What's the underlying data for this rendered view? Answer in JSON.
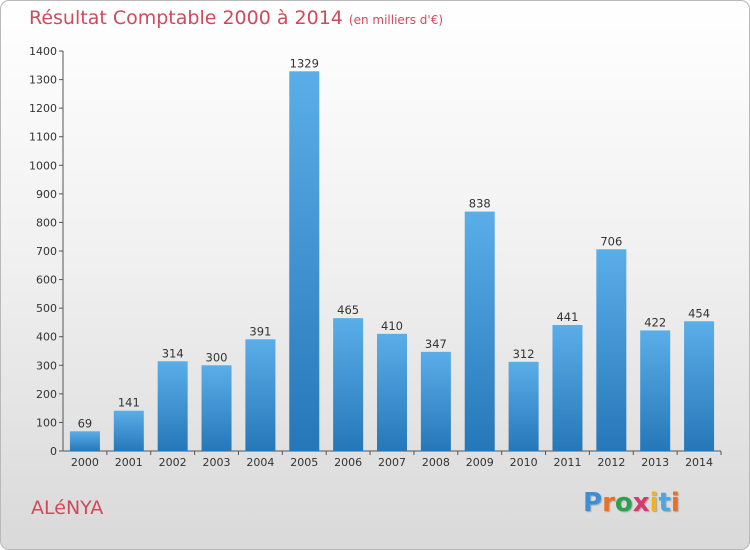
{
  "chart_data": {
    "type": "bar",
    "title": "Résultat Comptable 2000 à 2014",
    "subtitle": "(en milliers d'€)",
    "categories": [
      "2000",
      "2001",
      "2002",
      "2003",
      "2004",
      "2005",
      "2006",
      "2007",
      "2008",
      "2009",
      "2010",
      "2011",
      "2012",
      "2013",
      "2014"
    ],
    "values": [
      69,
      141,
      314,
      300,
      391,
      1329,
      465,
      410,
      347,
      838,
      312,
      441,
      706,
      422,
      454
    ],
    "y_ticks": [
      0,
      100,
      200,
      300,
      400,
      500,
      600,
      700,
      800,
      900,
      1000,
      1100,
      1200,
      1300,
      1400
    ],
    "ylim": [
      0,
      1400
    ],
    "xlabel": "",
    "ylabel": "",
    "grid": false,
    "bar_color": "#3a93d4"
  },
  "footer": {
    "place_name": "ALéNYA",
    "logo_text": "Proxiti",
    "logo_letter_colors": [
      "#3a8fd6",
      "#e8702a",
      "#2e9e4f",
      "#d33b6f",
      "#f0b323",
      "#4aa7e0",
      "#e8702a"
    ]
  },
  "colors": {
    "title": "#d04a5a",
    "axis": "#444444"
  }
}
